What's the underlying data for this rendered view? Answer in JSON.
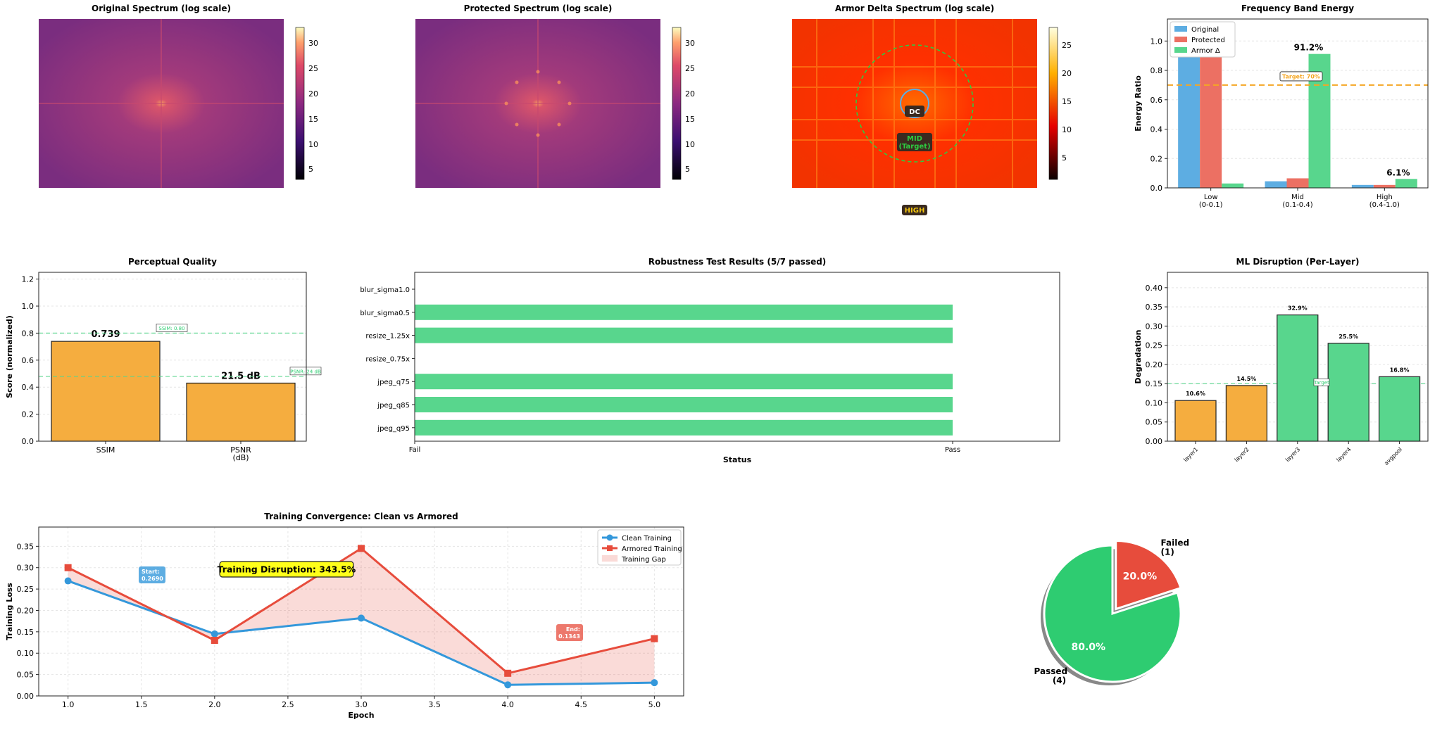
{
  "colors": {
    "original": "#5DADE2",
    "protected": "#EC7063",
    "armor": "#58D68D",
    "passed": "#2ECC71",
    "failed": "#E74C3C",
    "quality": "#F5AD3F",
    "clean": "#3498DB",
    "armored": "#E74C3C",
    "target": "#F5A623"
  },
  "spectra": [
    {
      "title": "Original Spectrum (log scale)",
      "colorbar_ticks": [
        "5",
        "10",
        "15",
        "20",
        "25",
        "30"
      ]
    },
    {
      "title": "Protected Spectrum (log scale)",
      "colorbar_ticks": [
        "5",
        "10",
        "15",
        "20",
        "25",
        "30"
      ]
    },
    {
      "title": "Armor Delta Spectrum (log scale)",
      "colorbar_ticks": [
        "5",
        "10",
        "15",
        "20",
        "25"
      ],
      "labels": {
        "dc": "DC",
        "mid_line1": "MID",
        "mid_line2": "(Target)",
        "high": "HIGH"
      }
    }
  ],
  "chart_data": [
    {
      "id": "band",
      "type": "bar",
      "title": "Frequency Band Energy",
      "ylabel": "Energy Ratio",
      "ylim": [
        0,
        1.15
      ],
      "yticks": [
        "0.0",
        "0.2",
        "0.4",
        "0.6",
        "0.8",
        "1.0"
      ],
      "categories": [
        [
          "Low",
          "(0-0.1)"
        ],
        [
          "Mid",
          "(0.1-0.4)"
        ],
        [
          "High",
          "(0.4-1.0)"
        ]
      ],
      "series": [
        {
          "name": "Original",
          "values": [
            0.93,
            0.045,
            0.02
          ]
        },
        {
          "name": "Protected",
          "values": [
            0.92,
            0.065,
            0.02
          ]
        },
        {
          "name": "Armor Δ",
          "values": [
            0.03,
            0.912,
            0.061
          ]
        }
      ],
      "data_labels": [
        "91.2%",
        "6.1%"
      ],
      "target_line": {
        "value": 0.7,
        "label": "Target: 70%"
      },
      "legend_placement": "top-left",
      "grid": true
    },
    {
      "id": "quality",
      "type": "bar",
      "title": "Perceptual Quality",
      "ylabel": "Score (normalized)",
      "ylim": [
        0,
        1.25
      ],
      "yticks": [
        "0.0",
        "0.2",
        "0.4",
        "0.6",
        "0.8",
        "1.0",
        "1.2"
      ],
      "categories": [
        [
          "SSIM"
        ],
        [
          "PSNR",
          "(dB)"
        ]
      ],
      "values": [
        0.739,
        0.43
      ],
      "data_labels": [
        "0.739",
        "21.5 dB"
      ],
      "thresholds": [
        {
          "value": 0.8,
          "label": "SSIM: 0.80"
        },
        {
          "value": 0.48,
          "label": "PSNR: 24 dB"
        }
      ],
      "grid": true
    },
    {
      "id": "robust",
      "type": "bar",
      "orientation": "horizontal",
      "title": "Robustness Test Results (5/7 passed)",
      "xlabel": "Status",
      "xticks": [
        "Fail",
        "Pass"
      ],
      "categories": [
        "blur_sigma1.0",
        "blur_sigma0.5",
        "resize_1.25x",
        "resize_0.75x",
        "jpeg_q75",
        "jpeg_q85",
        "jpeg_q95"
      ],
      "values": [
        0,
        1,
        1,
        0,
        1,
        1,
        1
      ]
    },
    {
      "id": "mldisrupt",
      "type": "bar",
      "title": "ML Disruption (Per-Layer)",
      "ylabel": "Degradation",
      "ylim": [
        0,
        0.44
      ],
      "yticks": [
        "0.00",
        "0.05",
        "0.10",
        "0.15",
        "0.20",
        "0.25",
        "0.30",
        "0.35",
        "0.40"
      ],
      "categories": [
        "layer1",
        "layer2",
        "layer3",
        "layer4",
        "avgpool"
      ],
      "values": [
        0.106,
        0.145,
        0.329,
        0.255,
        0.168
      ],
      "data_labels": [
        "10.6%",
        "14.5%",
        "32.9%",
        "25.5%",
        "16.8%"
      ],
      "threshold": {
        "value": 0.15,
        "label": "Target"
      },
      "grid": true
    },
    {
      "id": "training",
      "type": "line",
      "title": "Training Convergence: Clean vs Armored",
      "xlabel": "Epoch",
      "ylabel": "Training Loss",
      "xlim": [
        0.8,
        5.2
      ],
      "ylim": [
        0,
        0.395
      ],
      "xticks": [
        "1.0",
        "1.5",
        "2.0",
        "2.5",
        "3.0",
        "3.5",
        "4.0",
        "4.5",
        "5.0"
      ],
      "yticks": [
        "0.00",
        "0.05",
        "0.10",
        "0.15",
        "0.20",
        "0.25",
        "0.30",
        "0.35"
      ],
      "x": [
        1,
        2,
        3,
        4,
        5
      ],
      "series": [
        {
          "name": "Clean Training",
          "values": [
            0.269,
            0.145,
            0.182,
            0.026,
            0.031
          ]
        },
        {
          "name": "Armored Training",
          "values": [
            0.3,
            0.13,
            0.345,
            0.053,
            0.134
          ]
        }
      ],
      "fill_label": "Training Gap",
      "annotations": {
        "disruption": "Training Disruption: 343.5%",
        "start_line1": "Start:",
        "start_line2": "0.2690",
        "end_line1": "End:",
        "end_line2": "0.1343"
      },
      "legend_placement": "top-right",
      "grid": true
    },
    {
      "id": "pie",
      "type": "pie",
      "slices": [
        {
          "label_line1": "Passed",
          "label_line2": "(4)",
          "value": 80.0,
          "pct": "80.0%"
        },
        {
          "label_line1": "Failed",
          "label_line2": "(1)",
          "value": 20.0,
          "pct": "20.0%"
        }
      ]
    }
  ]
}
